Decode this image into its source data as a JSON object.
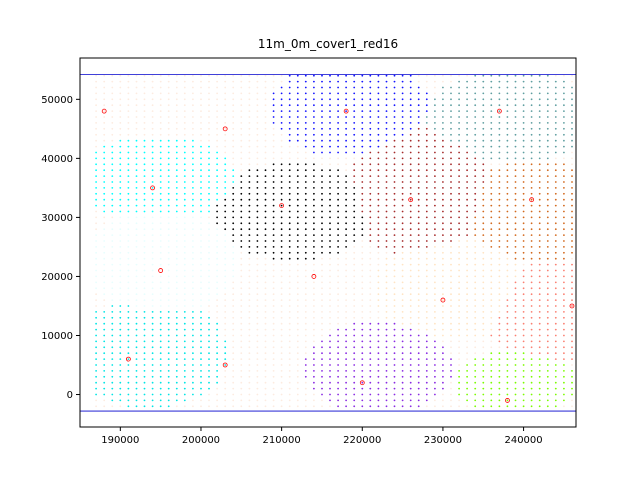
{
  "chart_data": {
    "type": "scatter",
    "title": "11m_0m_cover1_red16",
    "xlabel": "",
    "ylabel": "",
    "xlim": [
      185000,
      246500
    ],
    "ylim": [
      -5500,
      57000
    ],
    "grid": false,
    "xticks": [
      190000,
      200000,
      210000,
      220000,
      230000,
      240000
    ],
    "xtick_labels": [
      "190000",
      "200000",
      "210000",
      "220000",
      "230000",
      "240000"
    ],
    "yticks": [
      0,
      10000,
      20000,
      30000,
      40000,
      50000
    ],
    "ytick_labels": [
      "0",
      "10000",
      "20000",
      "30000",
      "40000",
      "50000"
    ],
    "grid_spacing": 1000,
    "boundary_lines": {
      "y_values": [
        54200,
        -2800
      ],
      "color": "#0000cd"
    },
    "background_color": "#fcebe0",
    "regions": [
      {
        "name": "",
        "color": "#e8fdfd",
        "cx": 195000,
        "cy": 22500,
        "x_range": [
          187000,
          206000
        ],
        "y_range": [
          -2000,
          54000
        ]
      },
      {
        "name": "",
        "color": "#fcebe0",
        "cx": 210000,
        "cy": 23000,
        "x_range": [
          187000,
          232000
        ],
        "y_range": [
          -2000,
          54000
        ]
      },
      {
        "name": "",
        "color": "#1414ff",
        "cx": 218000,
        "cy": 48000,
        "x_range": [
          200000,
          246000
        ],
        "y_range": [
          -2000,
          54000
        ]
      },
      {
        "name": "",
        "color": "#5f9ea0",
        "cx": 237000,
        "cy": 48000,
        "x_range": [
          187000,
          246000
        ],
        "y_range": [
          -2000,
          54000
        ]
      },
      {
        "name": "",
        "color": "#00ffff",
        "cx": 195000,
        "cy": 38000,
        "x_range": [
          187000,
          246000
        ],
        "y_range": [
          -2000,
          54000
        ]
      },
      {
        "name": "",
        "color": "#000000",
        "cx": 210000,
        "cy": 32000,
        "x_range": [
          187000,
          246000
        ],
        "y_range": [
          -2000,
          54000
        ]
      },
      {
        "name": "",
        "color": "#a52a2a",
        "cx": 226000,
        "cy": 33000,
        "x_range": [
          187000,
          246000
        ],
        "y_range": [
          -2000,
          54000
        ]
      },
      {
        "name": "",
        "color": "#d2691e",
        "cx": 241000,
        "cy": 33000,
        "x_range": [
          187000,
          246000
        ],
        "y_range": [
          -2000,
          54000
        ]
      },
      {
        "name": "",
        "color": "#ffe4c4",
        "cx": 231000,
        "cy": 18000,
        "x_range": [
          187000,
          246000
        ],
        "y_range": [
          -2000,
          54000
        ]
      },
      {
        "name": "",
        "color": "#00e5e5",
        "cx": 193000,
        "cy": 6000,
        "x_range": [
          187000,
          246000
        ],
        "y_range": [
          -2000,
          54000
        ]
      },
      {
        "name": "",
        "color": "#8a2be2",
        "cx": 221000,
        "cy": 3000,
        "x_range": [
          187000,
          246000
        ],
        "y_range": [
          -2000,
          54000
        ]
      },
      {
        "name": "",
        "color": "#7cfc00",
        "cx": 239000,
        "cy": 1000,
        "x_range": [
          187000,
          246000
        ],
        "y_range": [
          -2000,
          54000
        ]
      },
      {
        "name": "",
        "color": "#fa8072",
        "cx": 244000,
        "cy": 14000,
        "x_range": [
          187000,
          246000
        ],
        "y_range": [
          -2000,
          54000
        ]
      }
    ],
    "centers": {
      "color": "#ff0000",
      "points": [
        [
          188000,
          48000
        ],
        [
          203000,
          45000
        ],
        [
          218000,
          48000
        ],
        [
          237000,
          48000
        ],
        [
          194000,
          35000
        ],
        [
          210000,
          32000
        ],
        [
          226000,
          33000
        ],
        [
          241000,
          33000
        ],
        [
          195000,
          21000
        ],
        [
          214000,
          20000
        ],
        [
          230000,
          16000
        ],
        [
          246000,
          15000
        ],
        [
          191000,
          6000
        ],
        [
          203000,
          5000
        ],
        [
          220000,
          2000
        ],
        [
          238000,
          -1000
        ]
      ]
    }
  }
}
